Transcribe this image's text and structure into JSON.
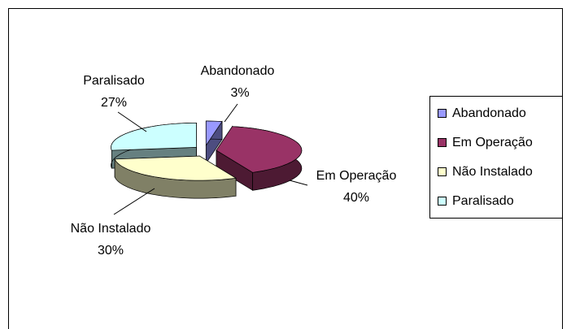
{
  "chart_data": {
    "type": "pie3d",
    "categories": [
      "Abandonado",
      "Em Operação",
      "Não Instalado",
      "Paralisado"
    ],
    "values": [
      3,
      40,
      30,
      27
    ],
    "value_labels": [
      "3%",
      "40%",
      "30%",
      "27%"
    ],
    "colors": [
      "#9999ff",
      "#993366",
      "#ffffcc",
      "#ccffff"
    ],
    "legend": "right"
  }
}
